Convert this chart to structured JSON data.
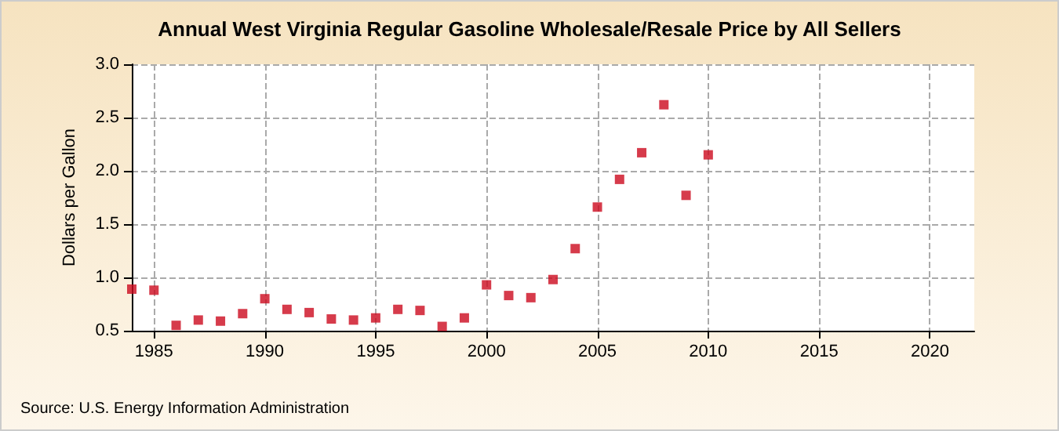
{
  "chart_data": {
    "type": "scatter",
    "title": "Annual West Virginia Regular Gasoline Wholesale/Resale Price by All Sellers",
    "ylabel": "Dollars per Gallon",
    "annotations": [
      "Source: U.S. Energy Information Administration"
    ],
    "x": [
      1984,
      1985,
      1986,
      1987,
      1988,
      1989,
      1990,
      1991,
      1992,
      1993,
      1994,
      1995,
      1996,
      1997,
      1998,
      1999,
      2000,
      2001,
      2002,
      2003,
      2004,
      2005,
      2006,
      2007,
      2008,
      2009,
      2010
    ],
    "series": [
      {
        "color": "#cc0a1e",
        "values": [
          0.89,
          0.88,
          0.55,
          0.6,
          0.59,
          0.66,
          0.8,
          0.7,
          0.67,
          0.61,
          0.6,
          0.62,
          0.7,
          0.69,
          0.54,
          0.62,
          0.93,
          0.83,
          0.81,
          0.98,
          1.27,
          1.66,
          1.92,
          2.17,
          2.62,
          1.77,
          2.15
        ]
      }
    ],
    "xlim": [
      1984,
      2022
    ],
    "xticks": [
      1985,
      1990,
      1995,
      2000,
      2005,
      2010,
      2015,
      2020
    ],
    "ylim": [
      0.5,
      3.0
    ],
    "yticks": [
      {
        "value": 0.5,
        "label": "0.5"
      },
      {
        "value": 1,
        "label": "1.0"
      },
      {
        "value": 1.5,
        "label": "1.5"
      },
      {
        "value": 2,
        "label": "2.0"
      },
      {
        "value": 2.5,
        "label": "2.5"
      },
      {
        "value": 3,
        "label": "3.0"
      }
    ],
    "grid": true,
    "marker": "square"
  }
}
